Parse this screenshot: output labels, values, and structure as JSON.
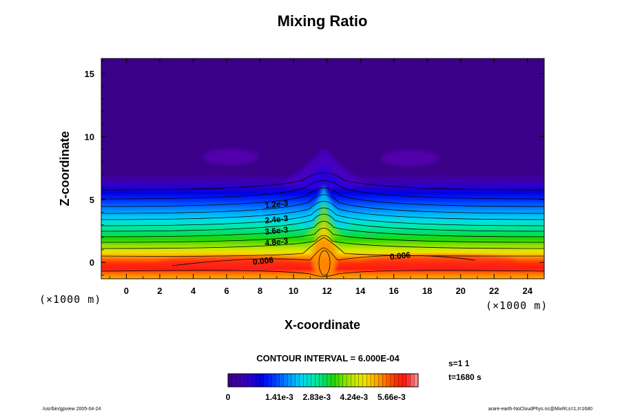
{
  "chart_data": {
    "type": "heatmap",
    "title": "Mixing Ratio",
    "xlabel": "X-coordinate",
    "ylabel": "Z-coordinate",
    "x_unit": "(×1000 m)",
    "z_unit": "(×1000 m)",
    "xlim": [
      -1.5,
      25
    ],
    "ylim": [
      -1.3,
      16.2
    ],
    "x_ticks": [
      0,
      2,
      4,
      6,
      8,
      10,
      12,
      14,
      16,
      18,
      20,
      22,
      24
    ],
    "y_ticks": [
      0,
      5,
      10,
      15
    ],
    "contour_labels": [
      {
        "text": "1.2e-3",
        "x": 9,
        "z": 4.4
      },
      {
        "text": "2.4e-3",
        "x": 9,
        "z": 3.2
      },
      {
        "text": "3.6e-3",
        "x": 9,
        "z": 2.3
      },
      {
        "text": "4.8e-3",
        "x": 9,
        "z": 1.4
      },
      {
        "text": "0.006",
        "x": 8.2,
        "z": -0.1
      },
      {
        "text": "0.006",
        "x": 16.4,
        "z": 0.3
      }
    ],
    "contour_interval_label": "CONTOUR INTERVAL = 6.000E-04",
    "colorbar": {
      "min": 0,
      "max": 0.0072,
      "tick_labels": [
        "0",
        "1.41e-3",
        "2.83e-3",
        "4.24e-3",
        "5.66e-3"
      ],
      "colors": [
        "#3a0088",
        "#4000a8",
        "#2a00c8",
        "#0000e0",
        "#0028ff",
        "#0068ff",
        "#00a8ff",
        "#00d8f0",
        "#00e8b0",
        "#00e070",
        "#20d800",
        "#80e000",
        "#c8e800",
        "#f0e000",
        "#ffb000",
        "#ff7000",
        "#ff3000",
        "#ff1818",
        "#ff8888"
      ]
    }
  },
  "annotations": {
    "s_value": "s=1 1",
    "t_value": "t=1680 s",
    "footer_left": "/usr/bin/gpview 2005-04-24",
    "footer_right": "arare-earth-NoCloudPhys.nc@MixRt,s=1,t=1680"
  }
}
